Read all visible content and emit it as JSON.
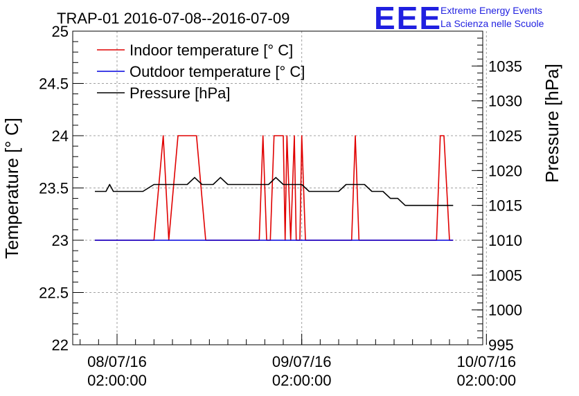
{
  "title": "TRAP-01 2016-07-08--2016-07-09",
  "logo": {
    "letters": "EEE",
    "line1": "Extreme Energy Events",
    "line2": "La Scienza nelle Scuole",
    "color": "#1f1fe0"
  },
  "chart_data": {
    "type": "line",
    "title": "TRAP-01 2016-07-08--2016-07-09",
    "xlabel": "",
    "ylabel": "Temperature [° C]",
    "y2label": "Pressure [hPa]",
    "xlim": [
      -0.24,
      1.98
    ],
    "ylim": [
      22,
      25
    ],
    "y2lim": [
      995,
      1040
    ],
    "x_unit": "days since 08/07/16 02:00:00",
    "x_ticks": [
      {
        "value": 0,
        "date": "08/07/16",
        "time": "02:00:00"
      },
      {
        "value": 1,
        "date": "09/07/16",
        "time": "02:00:00"
      },
      {
        "value": 2,
        "date": "10/07/16",
        "time": "02:00:00"
      }
    ],
    "y_ticks": [
      "22",
      "22.5",
      "23",
      "23.5",
      "24",
      "24.5",
      "25"
    ],
    "y2_ticks": [
      "995",
      "1000",
      "1005",
      "1010",
      "1015",
      "1020",
      "1025",
      "1030",
      "1035"
    ],
    "grid": true,
    "legend_position": "top-left",
    "series": [
      {
        "name": "Indoor temperature [° C]",
        "color": "#e00000",
        "axis": "left",
        "x": [
          -0.12,
          0.2,
          0.25,
          0.28,
          0.33,
          0.38,
          0.43,
          0.48,
          0.55,
          0.6,
          0.77,
          0.79,
          0.81,
          0.83,
          0.85,
          0.87,
          0.9,
          0.91,
          0.92,
          0.94,
          0.96,
          0.97,
          0.99,
          1.0,
          1.02,
          1.27,
          1.29,
          1.31,
          1.73,
          1.75,
          1.77,
          1.8,
          1.82
        ],
        "values": [
          23,
          23,
          24,
          23,
          24,
          24,
          24,
          23,
          23,
          23,
          23,
          24,
          23,
          23,
          24,
          24,
          24,
          23,
          24,
          23,
          24,
          23,
          23,
          24,
          23,
          23,
          24,
          23,
          23,
          24,
          24,
          23,
          23
        ]
      },
      {
        "name": "Outdoor temperature [° C]",
        "color": "#0000dd",
        "axis": "left",
        "x": [
          -0.12,
          1.82
        ],
        "values": [
          23,
          23
        ]
      },
      {
        "name": "Pressure [hPa]",
        "color": "#000000",
        "axis": "right",
        "x": [
          -0.12,
          -0.06,
          -0.04,
          -0.02,
          0.0,
          0.1,
          0.14,
          0.2,
          0.28,
          0.32,
          0.38,
          0.42,
          0.46,
          0.52,
          0.56,
          0.6,
          0.7,
          0.74,
          0.82,
          0.86,
          0.9,
          1.0,
          1.04,
          1.2,
          1.24,
          1.34,
          1.38,
          1.44,
          1.48,
          1.52,
          1.56,
          1.6,
          1.7,
          1.82
        ],
        "values": [
          1017,
          1017,
          1018,
          1017,
          1017,
          1017,
          1017,
          1018,
          1018,
          1018,
          1018,
          1019,
          1018,
          1018,
          1019,
          1018,
          1018,
          1018,
          1018,
          1019,
          1018,
          1018,
          1017,
          1017,
          1018,
          1018,
          1017,
          1017,
          1016,
          1016,
          1015,
          1015,
          1015,
          1015
        ]
      }
    ]
  }
}
